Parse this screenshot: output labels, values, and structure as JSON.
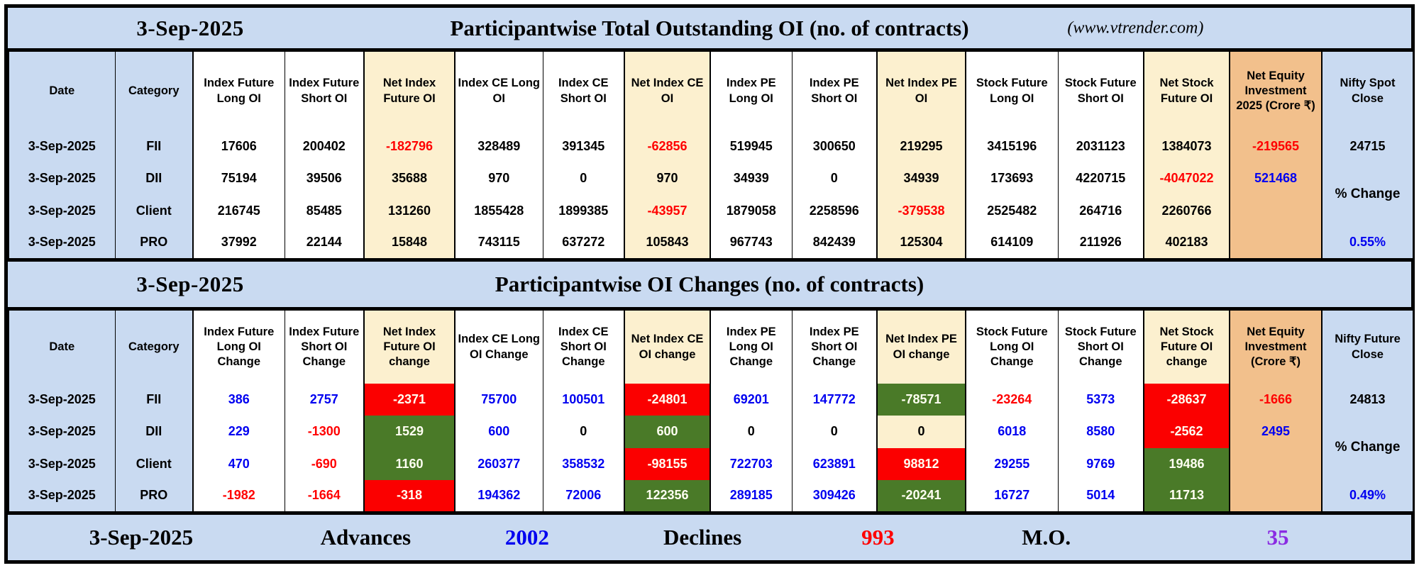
{
  "palette": {
    "banner_blue": "#c9daf1",
    "cream": "#fcf0cf",
    "orange": "#f2c08c",
    "green_cell": "#4a7a28",
    "red_cell": "#fb0000",
    "red_text": "#ff0000",
    "blue_text": "#0000f0",
    "purple_text": "#8a2be2"
  },
  "table1": {
    "banner": {
      "date": "3-Sep-2025",
      "title": "Participantwise Total Outstanding OI (no. of contracts)",
      "site": "(www.vtrender.com)"
    },
    "columns": [
      {
        "label": "Date",
        "bg": "lb"
      },
      {
        "label": "Category",
        "bg": "lb"
      },
      {
        "label": "Index Future Long OI",
        "bg": "w"
      },
      {
        "label": "Index Future Short OI",
        "bg": "w"
      },
      {
        "label": "Net Index Future OI",
        "bg": "c"
      },
      {
        "label": "Index CE Long OI",
        "bg": "w"
      },
      {
        "label": "Index CE Short OI",
        "bg": "w"
      },
      {
        "label": "Net Index CE OI",
        "bg": "c"
      },
      {
        "label": "Index PE Long OI",
        "bg": "w"
      },
      {
        "label": "Index PE Short OI",
        "bg": "w"
      },
      {
        "label": "Net Index PE OI",
        "bg": "c"
      },
      {
        "label": "Stock Future Long OI",
        "bg": "w"
      },
      {
        "label": "Stock Future Short OI",
        "bg": "w"
      },
      {
        "label": "Net Stock Future OI",
        "bg": "c"
      },
      {
        "label": "Net Equity Investment 2025 (Crore ₹)",
        "bg": "o"
      },
      {
        "label": "Nifty Spot Close",
        "bg": "lb"
      }
    ],
    "rows": [
      {
        "date": "3-Sep-2025",
        "category": "FII",
        "cells": [
          {
            "v": "17606"
          },
          {
            "v": "200402"
          },
          {
            "v": "-182796",
            "fg": "r",
            "bg": "c"
          },
          {
            "v": "328489"
          },
          {
            "v": "391345"
          },
          {
            "v": "-62856",
            "fg": "r",
            "bg": "c"
          },
          {
            "v": "519945"
          },
          {
            "v": "300650"
          },
          {
            "v": "219295",
            "bg": "c"
          },
          {
            "v": "3415196"
          },
          {
            "v": "2031123"
          },
          {
            "v": "1384073",
            "bg": "c"
          }
        ]
      },
      {
        "date": "3-Sep-2025",
        "category": "DII",
        "cells": [
          {
            "v": "75194"
          },
          {
            "v": "39506"
          },
          {
            "v": "35688",
            "bg": "c"
          },
          {
            "v": "970"
          },
          {
            "v": "0"
          },
          {
            "v": "970",
            "bg": "c"
          },
          {
            "v": "34939"
          },
          {
            "v": "0"
          },
          {
            "v": "34939",
            "bg": "c"
          },
          {
            "v": "173693"
          },
          {
            "v": "4220715"
          },
          {
            "v": "-4047022",
            "fg": "r",
            "bg": "c"
          }
        ]
      },
      {
        "date": "3-Sep-2025",
        "category": "Client",
        "cells": [
          {
            "v": "216745"
          },
          {
            "v": "85485"
          },
          {
            "v": "131260",
            "bg": "c"
          },
          {
            "v": "1855428"
          },
          {
            "v": "1899385"
          },
          {
            "v": "-43957",
            "fg": "r",
            "bg": "c"
          },
          {
            "v": "1879058"
          },
          {
            "v": "2258596"
          },
          {
            "v": "-379538",
            "fg": "r",
            "bg": "c"
          },
          {
            "v": "2525482"
          },
          {
            "v": "264716"
          },
          {
            "v": "2260766",
            "bg": "c"
          }
        ]
      },
      {
        "date": "3-Sep-2025",
        "category": "PRO",
        "cells": [
          {
            "v": "37992"
          },
          {
            "v": "22144"
          },
          {
            "v": "15848",
            "bg": "c"
          },
          {
            "v": "743115"
          },
          {
            "v": "637272"
          },
          {
            "v": "105843",
            "bg": "c"
          },
          {
            "v": "967743"
          },
          {
            "v": "842439"
          },
          {
            "v": "125304",
            "bg": "c"
          },
          {
            "v": "614109"
          },
          {
            "v": "211926"
          },
          {
            "v": "402183",
            "bg": "c"
          }
        ]
      }
    ],
    "equity": [
      {
        "v": "-219565",
        "fg": "r"
      },
      {
        "v": "521468",
        "fg": "b"
      },
      {
        "v": ""
      },
      {
        "v": ""
      }
    ],
    "nifty": {
      "close": "24715",
      "change_label": "% Change",
      "pct": "0.55%"
    }
  },
  "table2": {
    "banner": {
      "date": "3-Sep-2025",
      "title": "Participantwise OI Changes (no. of contracts)"
    },
    "columns": [
      {
        "label": "Date",
        "bg": "lb"
      },
      {
        "label": "Category",
        "bg": "lb"
      },
      {
        "label": "Index Future Long OI Change",
        "bg": "w"
      },
      {
        "label": "Index Future Short OI Change",
        "bg": "w"
      },
      {
        "label": "Net Index Future OI change",
        "bg": "c"
      },
      {
        "label": "Index CE Long OI Change",
        "bg": "w"
      },
      {
        "label": "Index CE Short OI Change",
        "bg": "w"
      },
      {
        "label": "Net Index CE OI change",
        "bg": "c"
      },
      {
        "label": "Index PE Long OI Change",
        "bg": "w"
      },
      {
        "label": "Index PE Short OI Change",
        "bg": "w"
      },
      {
        "label": "Net Index PE OI change",
        "bg": "c"
      },
      {
        "label": "Stock Future Long OI Change",
        "bg": "w"
      },
      {
        "label": "Stock Future Short OI Change",
        "bg": "w"
      },
      {
        "label": "Net Stock Future OI change",
        "bg": "c"
      },
      {
        "label": "Net Equity Investment (Crore ₹)",
        "bg": "o"
      },
      {
        "label": "Nifty Future Close",
        "bg": "lb"
      }
    ],
    "rows": [
      {
        "date": "3-Sep-2025",
        "category": "FII",
        "cells": [
          {
            "v": "386",
            "fg": "b"
          },
          {
            "v": "2757",
            "fg": "b"
          },
          {
            "v": "-2371",
            "fg": "w",
            "bg": "R"
          },
          {
            "v": "75700",
            "fg": "b"
          },
          {
            "v": "100501",
            "fg": "b"
          },
          {
            "v": "-24801",
            "fg": "w",
            "bg": "R"
          },
          {
            "v": "69201",
            "fg": "b"
          },
          {
            "v": "147772",
            "fg": "b"
          },
          {
            "v": "-78571",
            "fg": "w",
            "bg": "g"
          },
          {
            "v": "-23264",
            "fg": "r"
          },
          {
            "v": "5373",
            "fg": "b"
          },
          {
            "v": "-28637",
            "fg": "w",
            "bg": "R"
          }
        ]
      },
      {
        "date": "3-Sep-2025",
        "category": "DII",
        "cells": [
          {
            "v": "229",
            "fg": "b"
          },
          {
            "v": "-1300",
            "fg": "r"
          },
          {
            "v": "1529",
            "fg": "w",
            "bg": "g"
          },
          {
            "v": "600",
            "fg": "b"
          },
          {
            "v": "0"
          },
          {
            "v": "600",
            "fg": "w",
            "bg": "g"
          },
          {
            "v": "0"
          },
          {
            "v": "0"
          },
          {
            "v": "0",
            "bg": "c"
          },
          {
            "v": "6018",
            "fg": "b"
          },
          {
            "v": "8580",
            "fg": "b"
          },
          {
            "v": "-2562",
            "fg": "w",
            "bg": "R"
          }
        ]
      },
      {
        "date": "3-Sep-2025",
        "category": "Client",
        "cells": [
          {
            "v": "470",
            "fg": "b"
          },
          {
            "v": "-690",
            "fg": "r"
          },
          {
            "v": "1160",
            "fg": "w",
            "bg": "g"
          },
          {
            "v": "260377",
            "fg": "b"
          },
          {
            "v": "358532",
            "fg": "b"
          },
          {
            "v": "-98155",
            "fg": "w",
            "bg": "R"
          },
          {
            "v": "722703",
            "fg": "b"
          },
          {
            "v": "623891",
            "fg": "b"
          },
          {
            "v": "98812",
            "fg": "w",
            "bg": "R"
          },
          {
            "v": "29255",
            "fg": "b"
          },
          {
            "v": "9769",
            "fg": "b"
          },
          {
            "v": "19486",
            "fg": "w",
            "bg": "g"
          }
        ]
      },
      {
        "date": "3-Sep-2025",
        "category": "PRO",
        "cells": [
          {
            "v": "-1982",
            "fg": "r"
          },
          {
            "v": "-1664",
            "fg": "r"
          },
          {
            "v": "-318",
            "fg": "w",
            "bg": "R"
          },
          {
            "v": "194362",
            "fg": "b"
          },
          {
            "v": "72006",
            "fg": "b"
          },
          {
            "v": "122356",
            "fg": "w",
            "bg": "g"
          },
          {
            "v": "289185",
            "fg": "b"
          },
          {
            "v": "309426",
            "fg": "b"
          },
          {
            "v": "-20241",
            "fg": "w",
            "bg": "g"
          },
          {
            "v": "16727",
            "fg": "b"
          },
          {
            "v": "5014",
            "fg": "b"
          },
          {
            "v": "11713",
            "fg": "w",
            "bg": "g"
          }
        ]
      }
    ],
    "equity": [
      {
        "v": "-1666",
        "fg": "r"
      },
      {
        "v": "2495",
        "fg": "b"
      },
      {
        "v": ""
      },
      {
        "v": ""
      }
    ],
    "nifty": {
      "close": "24813",
      "change_label": "% Change",
      "pct": "0.49%"
    }
  },
  "footer": {
    "date": "3-Sep-2025",
    "advances_label": "Advances",
    "advances_value": "2002",
    "declines_label": "Declines",
    "declines_value": "993",
    "mo_label": "M.O.",
    "mo_value": "35"
  }
}
